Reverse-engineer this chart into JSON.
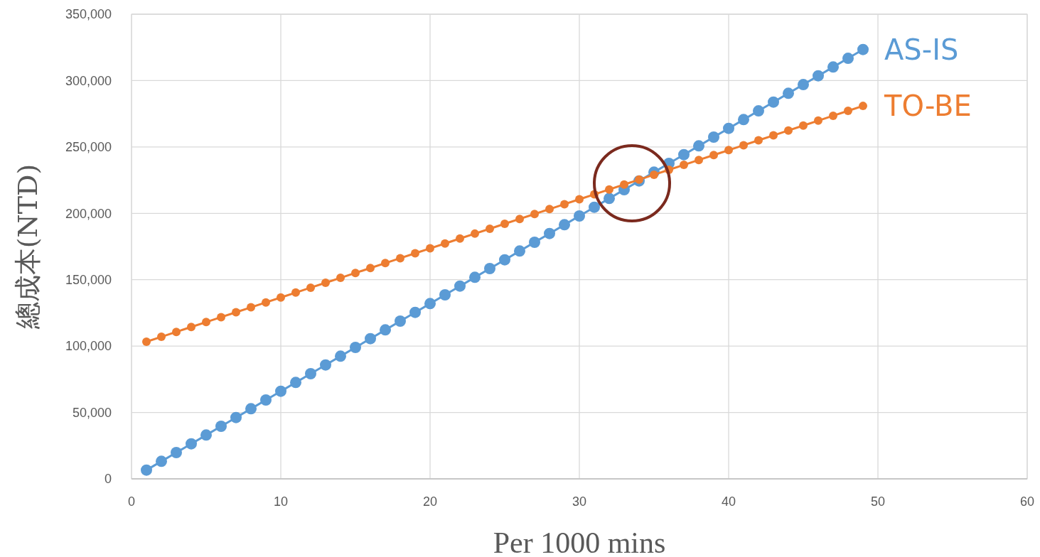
{
  "chart_data": {
    "type": "line",
    "xlabel": "Per 1000 mins",
    "ylabel": "總成本(NTD)",
    "x": [
      1,
      2,
      3,
      4,
      5,
      6,
      7,
      8,
      9,
      10,
      11,
      12,
      13,
      14,
      15,
      16,
      17,
      18,
      19,
      20,
      21,
      22,
      23,
      24,
      25,
      26,
      27,
      28,
      29,
      30,
      31,
      32,
      33,
      34,
      35,
      36,
      37,
      38,
      39,
      40,
      41,
      42,
      43,
      44,
      45,
      46,
      47,
      48,
      49
    ],
    "series": [
      {
        "name": "AS-IS",
        "color": "#5b9bd5",
        "values": [
          6600,
          13200,
          19800,
          26400,
          33000,
          39600,
          46200,
          52800,
          59400,
          66000,
          72600,
          79200,
          85800,
          92400,
          99000,
          105600,
          112200,
          118800,
          125400,
          132000,
          138600,
          145200,
          151800,
          158400,
          165000,
          171600,
          178200,
          184800,
          191400,
          198000,
          204600,
          211200,
          217800,
          224400,
          231000,
          237600,
          244200,
          250800,
          257400,
          264000,
          270600,
          277200,
          283800,
          290400,
          297000,
          303600,
          310200,
          316800,
          323400
        ]
      },
      {
        "name": "TO-BE",
        "color": "#ed7d31",
        "values": [
          103300,
          107000,
          110700,
          114400,
          118100,
          121800,
          125500,
          129200,
          132900,
          136600,
          140300,
          144000,
          147700,
          151400,
          155100,
          158800,
          162500,
          166200,
          169900,
          173600,
          177300,
          181000,
          184700,
          188400,
          192100,
          195800,
          199500,
          203200,
          206900,
          210600,
          214300,
          218000,
          221700,
          225400,
          229100,
          232800,
          236500,
          240200,
          243900,
          247600,
          251300,
          255000,
          258700,
          262400,
          266100,
          269800,
          273500,
          277200,
          280900
        ]
      }
    ],
    "xlim": [
      0,
      60
    ],
    "xticks": [
      0,
      10,
      20,
      30,
      40,
      50,
      60
    ],
    "ylim": [
      0,
      350000
    ],
    "yticks": [
      {
        "value": 0,
        "label": "0"
      },
      {
        "value": 50000,
        "label": "50,000"
      },
      {
        "value": 100000,
        "label": "100,000"
      },
      {
        "value": 150000,
        "label": "150,000"
      },
      {
        "value": 200000,
        "label": "200,000"
      },
      {
        "value": 250000,
        "label": "250,000"
      },
      {
        "value": 300000,
        "label": "300,000"
      },
      {
        "value": 350000,
        "label": "350,000"
      }
    ],
    "grid": true,
    "marker": "circle",
    "line_style": "solid"
  }
}
